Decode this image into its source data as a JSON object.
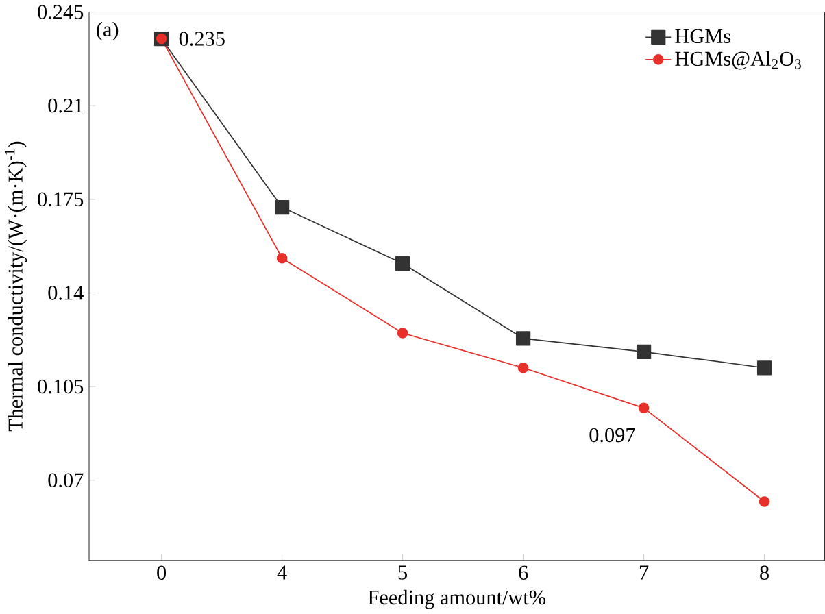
{
  "chart_data": {
    "type": "line",
    "xlabel": "Feeding amount/wt%",
    "ylabel": "Thermal conductivity/(W·(m·K)$^{-1}$)",
    "categories": [
      "0",
      "4",
      "5",
      "6",
      "7",
      "8"
    ],
    "series": [
      {
        "name": "HGMs",
        "color": "#333333",
        "marker": "square",
        "values": [
          0.235,
          0.172,
          0.151,
          0.123,
          0.118,
          0.112
        ]
      },
      {
        "name": "HGMs@Al$_{2}$O$_{3}$",
        "color": "#e8302a",
        "marker": "circle",
        "values": [
          0.235,
          0.153,
          0.125,
          0.112,
          0.097,
          0.062
        ]
      }
    ],
    "ylim": [
      0.04,
      0.245
    ],
    "yticks": [
      0.07,
      0.105,
      0.14,
      0.175,
      0.21,
      0.245
    ],
    "legend": "top right",
    "grid": false,
    "annotations": [
      "(a)",
      {
        "text": "0.235",
        "x": "0",
        "y": 0.235
      },
      {
        "text": "0.097",
        "x": "7",
        "y": 0.097
      }
    ]
  }
}
